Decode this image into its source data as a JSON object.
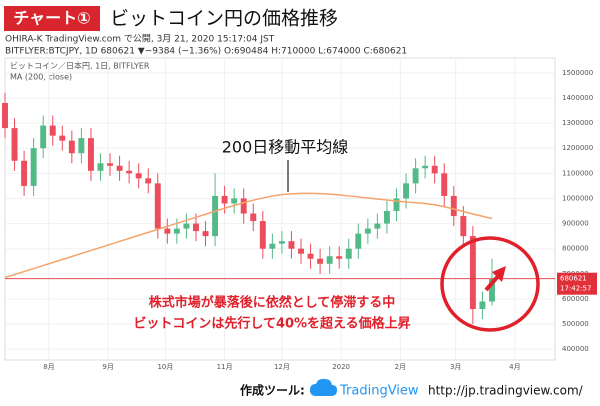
{
  "header": {
    "badge": "チャート①",
    "title": "ビットコイン円の価格推移",
    "line1": "OHIRA-K TradingView.com で公開, 3月 21, 2020 15:17:04 JST",
    "line2": "BITFLYER:BTCJPY, 1D 680621 ▼−9384 (−1.36%) O:690484 H:710000 L:674000 C:680621"
  },
  "chart_data": {
    "type": "candlestick",
    "legend_title": "ビットコイン／日本円, 1日, BITFLYER",
    "x": [
      0,
      5,
      10,
      15,
      20,
      25,
      30,
      35,
      40,
      45,
      50,
      55,
      60,
      65,
      70,
      75,
      80,
      85,
      90,
      95,
      100,
      105,
      110,
      115,
      120,
      125,
      130,
      135,
      140,
      145,
      150,
      155,
      160,
      165,
      170,
      175,
      180,
      185,
      190,
      195,
      200,
      205,
      210,
      215,
      220,
      225,
      230,
      235,
      240,
      245,
      250,
      255
    ],
    "open": [
      1380000,
      1280000,
      1150000,
      1050000,
      1200000,
      1290000,
      1250000,
      1230000,
      1180000,
      1240000,
      1110000,
      1140000,
      1130000,
      1110000,
      1100000,
      1080000,
      1060000,
      880000,
      860000,
      880000,
      900000,
      870000,
      850000,
      1010000,
      980000,
      1000000,
      940000,
      910000,
      800000,
      820000,
      830000,
      800000,
      780000,
      760000,
      740000,
      770000,
      760000,
      800000,
      860000,
      880000,
      900000,
      950000,
      1000000,
      1060000,
      1120000,
      1130000,
      1100000,
      1010000,
      930000,
      850000,
      560000,
      590000
    ],
    "high": [
      1420000,
      1320000,
      1190000,
      1240000,
      1330000,
      1330000,
      1290000,
      1270000,
      1280000,
      1280000,
      1180000,
      1180000,
      1170000,
      1150000,
      1140000,
      1120000,
      1100000,
      920000,
      920000,
      940000,
      940000,
      910000,
      1100000,
      1050000,
      1040000,
      1040000,
      980000,
      950000,
      860000,
      870000,
      870000,
      840000,
      820000,
      800000,
      810000,
      810000,
      840000,
      900000,
      920000,
      940000,
      990000,
      1040000,
      1100000,
      1160000,
      1170000,
      1170000,
      1140000,
      1050000,
      970000,
      890000,
      630000,
      760000
    ],
    "low": [
      1240000,
      1110000,
      1010000,
      1010000,
      1160000,
      1210000,
      1190000,
      1140000,
      1140000,
      1070000,
      1070000,
      1090000,
      1070000,
      1060000,
      1040000,
      1020000,
      840000,
      820000,
      820000,
      840000,
      830000,
      810000,
      810000,
      940000,
      940000,
      900000,
      870000,
      760000,
      760000,
      780000,
      760000,
      740000,
      720000,
      700000,
      700000,
      720000,
      720000,
      760000,
      820000,
      840000,
      860000,
      910000,
      960000,
      1020000,
      1080000,
      1060000,
      970000,
      890000,
      810000,
      500000,
      520000,
      574000
    ],
    "close": [
      1280000,
      1150000,
      1050000,
      1200000,
      1290000,
      1250000,
      1230000,
      1180000,
      1240000,
      1110000,
      1140000,
      1130000,
      1110000,
      1100000,
      1080000,
      1060000,
      880000,
      860000,
      880000,
      900000,
      870000,
      850000,
      1010000,
      980000,
      1000000,
      940000,
      910000,
      800000,
      820000,
      830000,
      800000,
      780000,
      760000,
      740000,
      770000,
      760000,
      800000,
      860000,
      880000,
      900000,
      950000,
      1000000,
      1060000,
      1120000,
      1130000,
      1100000,
      1010000,
      930000,
      850000,
      560000,
      590000,
      680621
    ],
    "up_color": "#53b987",
    "down_color": "#eb4d5c",
    "series": [
      {
        "name": "MA (200, close)",
        "color": "#f5a36b",
        "values": [
          685000,
          697000,
          709000,
          721000,
          733000,
          745000,
          757000,
          769000,
          781000,
          793000,
          805000,
          817000,
          829000,
          841000,
          853000,
          865000,
          877000,
          889000,
          901000,
          913000,
          925000,
          937000,
          949000,
          961000,
          972000,
          983000,
          993000,
          1002000,
          1010000,
          1015000,
          1018000,
          1020000,
          1020000,
          1019000,
          1017000,
          1014000,
          1010000,
          1006000,
          1002000,
          998000,
          994000,
          990000,
          986000,
          983000,
          980000,
          975000,
          967000,
          958000,
          948000,
          938000,
          929000,
          920000
        ]
      }
    ],
    "price_line_color": "#e0303a",
    "countdown": "17:42:57",
    "xlim": [
      0,
      288
    ],
    "xticks": [
      {
        "value": 23,
        "label": "8月"
      },
      {
        "value": 54,
        "label": "9月"
      },
      {
        "value": 84,
        "label": "10月"
      },
      {
        "value": 115,
        "label": "11月"
      },
      {
        "value": 145,
        "label": "12月"
      },
      {
        "value": 176,
        "label": "2020"
      },
      {
        "value": 207,
        "label": "2月"
      },
      {
        "value": 236,
        "label": "3月"
      },
      {
        "value": 267,
        "label": "4月"
      }
    ],
    "ylim": [
      357000,
      1559000
    ],
    "yticks": [
      400000,
      500000,
      600000,
      700000,
      800000,
      900000,
      1000000,
      1100000,
      1200000,
      1300000,
      1400000,
      1500000
    ],
    "grid": true,
    "annotations": [
      "200日移動平均線",
      "株式市場が暴落後に依然として停滞する中",
      "ビットコインは先行して40%を超える価格上昇"
    ]
  },
  "footer": {
    "tool_label": "作成ツール:",
    "logo_text": "TradingView",
    "url": "http://jp.tradingview.com/"
  }
}
